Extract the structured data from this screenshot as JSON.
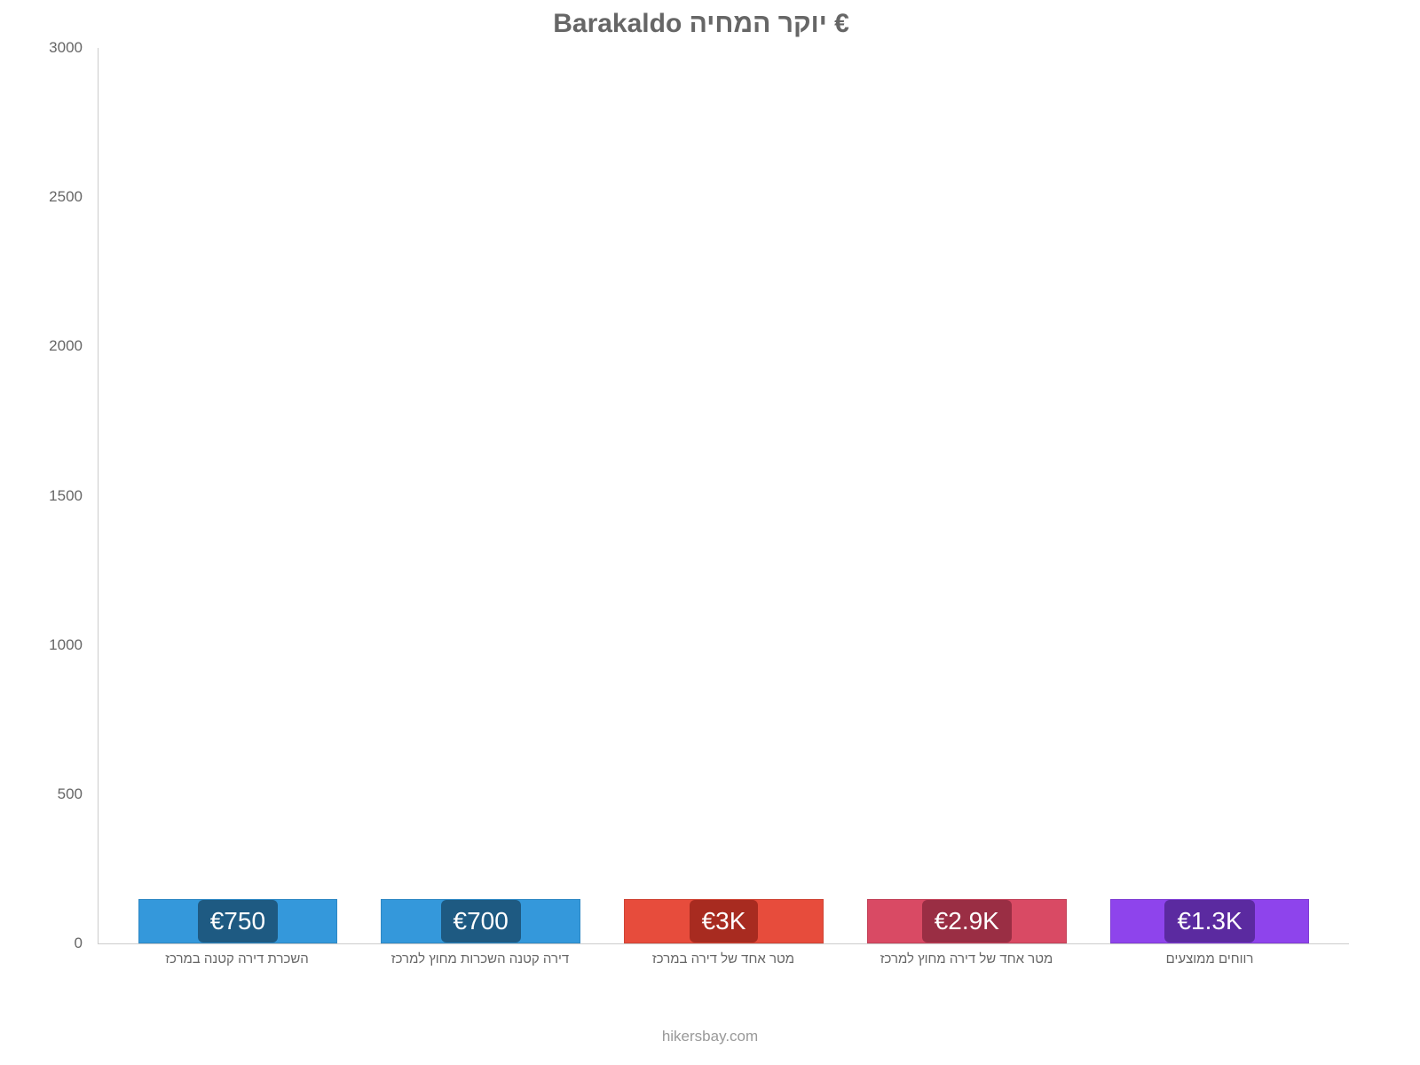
{
  "chart": {
    "type": "bar",
    "title": "€ יוקר המחיה Barakaldo",
    "title_fontsize": 30,
    "title_color": "#666666",
    "background_color": "#ffffff",
    "footer_text": "hikersbay.com",
    "footer_color": "#999999",
    "ylim": [
      0,
      3000
    ],
    "ytick_step": 500,
    "yticks": [
      {
        "value": 0,
        "label": "0"
      },
      {
        "value": 500,
        "label": "500"
      },
      {
        "value": 1000,
        "label": "1000"
      },
      {
        "value": 1500,
        "label": "1500"
      },
      {
        "value": 2000,
        "label": "2000"
      },
      {
        "value": 2500,
        "label": "2500"
      },
      {
        "value": 3000,
        "label": "3000"
      }
    ],
    "axis_color": "#cccccc",
    "tick_label_color": "#666666",
    "tick_label_fontsize": 17,
    "bar_width_pct": 82,
    "bars": [
      {
        "category": "השכרת דירה קטנה במרכז",
        "value": 750,
        "display": "€750",
        "fill": "#3498db",
        "label_bg": "#1e5a82"
      },
      {
        "category": "דירה קטנה השכרות מחוץ למרכז",
        "value": 700,
        "display": "€700",
        "fill": "#3498db",
        "label_bg": "#1e5a82"
      },
      {
        "category": "מטר אחד של דירה במרכז",
        "value": 3000,
        "display": "€3K",
        "fill": "#e74c3c",
        "label_bg": "#a82b20"
      },
      {
        "category": "מטר אחד של דירה מחוץ למרכז",
        "value": 2900,
        "display": "€2.9K",
        "fill": "#d94a64",
        "label_bg": "#9a2e44"
      },
      {
        "category": "רווחים ממוצעים",
        "value": 1250,
        "display": "€1.3K",
        "fill": "#8e44ec",
        "label_bg": "#5b2aa0"
      }
    ]
  }
}
